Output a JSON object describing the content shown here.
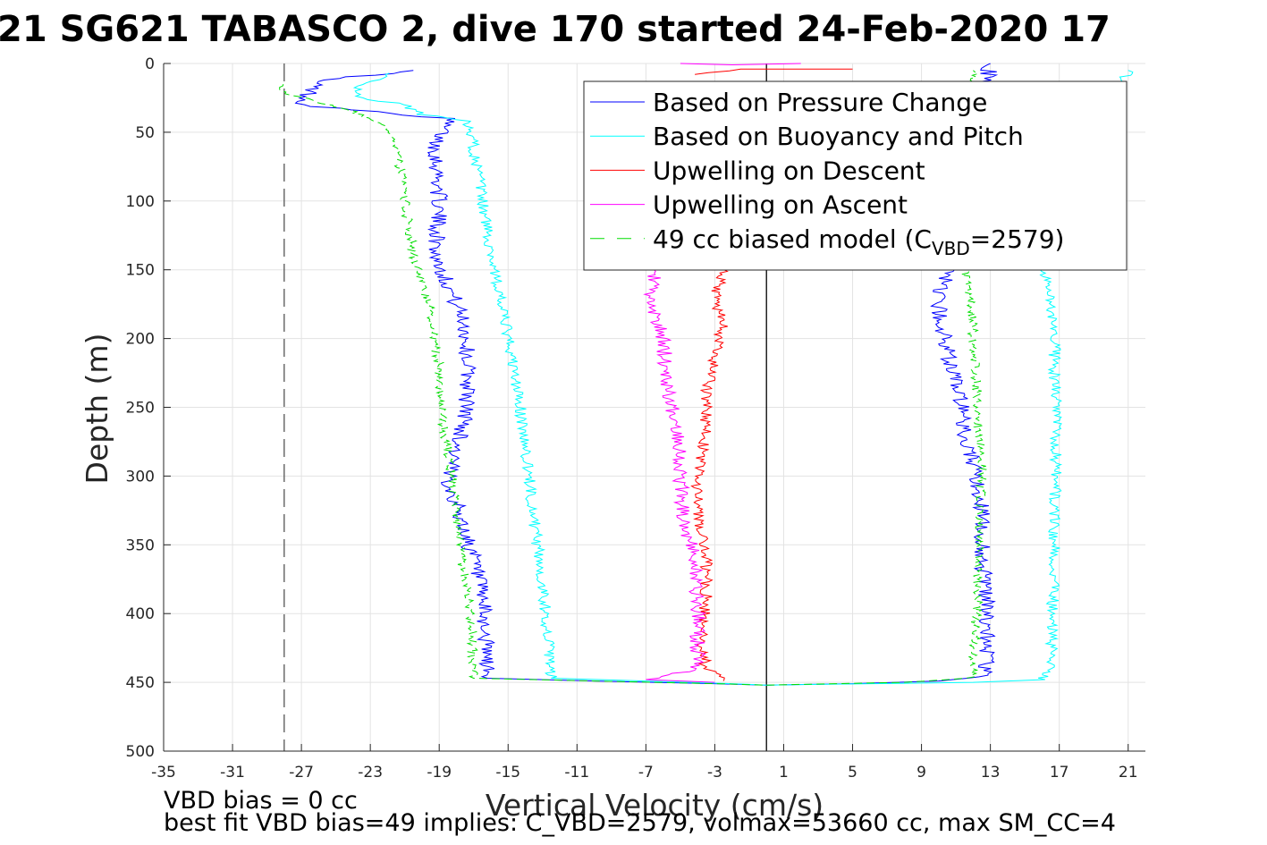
{
  "title": "21 SG621 TABASCO 2, dive 170 started 24-Feb-2020 17",
  "footnotes": {
    "line1": "VBD bias = 0 cc",
    "line2": "best fit VBD bias=49 implies: C_VBD=2579, volmax=53660 cc, max SM_CC=4"
  },
  "chart_data": {
    "type": "line",
    "xlabel": "Vertical Velocity (cm/s)",
    "ylabel": "Depth (m)",
    "xlim": [
      -35,
      22
    ],
    "ylim": [
      0,
      500
    ],
    "y_reversed": true,
    "xticks": [
      -35,
      -31,
      -27,
      -23,
      -19,
      -15,
      -11,
      -7,
      -3,
      1,
      5,
      9,
      13,
      17,
      21
    ],
    "yticks": [
      0,
      50,
      100,
      150,
      200,
      250,
      300,
      350,
      400,
      450,
      500
    ],
    "grid": true,
    "legend_position": "top-right",
    "reference_lines": [
      {
        "type": "vertical",
        "x": 0,
        "color": "#000000",
        "style": "solid"
      },
      {
        "type": "vertical",
        "x": -28,
        "color": "#555555",
        "style": "dashed"
      }
    ],
    "series": [
      {
        "name": "Based on Pressure Change",
        "color": "#0000ff",
        "style": "solid",
        "noise": 0.5,
        "segments": [
          [
            [
              -20,
              5
            ],
            [
              -26,
              12
            ],
            [
              -27,
              30
            ],
            [
              -23,
              35
            ],
            [
              -18.5,
              40
            ],
            [
              -19.2,
              60
            ],
            [
              -19,
              100
            ],
            [
              -19.2,
              140
            ],
            [
              -18.5,
              160
            ],
            [
              -17.5,
              190
            ],
            [
              -17.3,
              230
            ],
            [
              -17.5,
              260
            ],
            [
              -18,
              280
            ],
            [
              -18.5,
              300
            ],
            [
              -17.8,
              330
            ],
            [
              -17,
              360
            ],
            [
              -16.5,
              390
            ],
            [
              -16.3,
              420
            ],
            [
              -16.2,
              447
            ],
            [
              -10,
              449
            ],
            [
              -3,
              451
            ],
            [
              0,
              452
            ]
          ],
          [
            [
              0,
              452
            ],
            [
              5,
              451
            ],
            [
              10,
              449
            ],
            [
              12.5,
              446
            ],
            [
              12.8,
              440
            ],
            [
              12.8,
              420
            ],
            [
              12.8,
              390
            ],
            [
              12.5,
              360
            ],
            [
              12.5,
              330
            ],
            [
              12.2,
              300
            ],
            [
              11.5,
              270
            ],
            [
              11.2,
              240
            ],
            [
              10.5,
              210
            ],
            [
              10,
              180
            ],
            [
              10.2,
              160
            ],
            [
              11,
              150
            ],
            [
              13,
              0
            ]
          ]
        ]
      },
      {
        "name": "Based on Buoyancy and Pitch",
        "color": "#00ffff",
        "style": "solid",
        "noise": 0.35,
        "segments": [
          [
            [
              -22,
              7
            ],
            [
              -24,
              20
            ],
            [
              -23.5,
              25
            ],
            [
              -21,
              30
            ],
            [
              -20,
              37
            ],
            [
              -17.5,
              42
            ],
            [
              -17,
              60
            ],
            [
              -16.5,
              100
            ],
            [
              -15.8,
              150
            ],
            [
              -15,
              200
            ],
            [
              -14.3,
              250
            ],
            [
              -13.8,
              300
            ],
            [
              -13.3,
              350
            ],
            [
              -12.8,
              400
            ],
            [
              -12.5,
              447
            ],
            [
              -7,
              449
            ],
            [
              -2,
              451
            ],
            [
              0,
              452
            ]
          ],
          [
            [
              0,
              452
            ],
            [
              6,
              451
            ],
            [
              12,
              450
            ],
            [
              16,
              448
            ],
            [
              16.5,
              440
            ],
            [
              16.6,
              400
            ],
            [
              16.7,
              350
            ],
            [
              16.8,
              300
            ],
            [
              16.8,
              250
            ],
            [
              16.7,
              200
            ],
            [
              16.3,
              160
            ],
            [
              16,
              150
            ],
            [
              21,
              5
            ]
          ]
        ]
      },
      {
        "name": "Upwelling on Descent",
        "color": "#ff0000",
        "style": "solid",
        "noise": 0.35,
        "segments": [
          [
            [
              -2.5,
              150
            ],
            [
              -3,
              170
            ],
            [
              -2.5,
              190
            ],
            [
              -3,
              210
            ],
            [
              -3.5,
              240
            ],
            [
              -3.5,
              270
            ],
            [
              -4,
              300
            ],
            [
              -4,
              330
            ],
            [
              -3.5,
              360
            ],
            [
              -3.5,
              390
            ],
            [
              -3.8,
              420
            ],
            [
              -3.5,
              440
            ],
            [
              -2.5,
              449
            ]
          ],
          [
            [
              -4,
              8
            ],
            [
              -1.5,
              4
            ],
            [
              5,
              4
            ]
          ]
        ]
      },
      {
        "name": "Upwelling on Ascent",
        "color": "#ff00ff",
        "style": "solid",
        "noise": 0.45,
        "segments": [
          [
            [
              -6.5,
              150
            ],
            [
              -6.8,
              175
            ],
            [
              -6,
              200
            ],
            [
              -5.8,
              225
            ],
            [
              -5.5,
              250
            ],
            [
              -5,
              275
            ],
            [
              -5,
              300
            ],
            [
              -4.8,
              330
            ],
            [
              -4.2,
              360
            ],
            [
              -4,
              390
            ],
            [
              -4,
              420
            ],
            [
              -4,
              440
            ],
            [
              -7,
              448
            ],
            [
              -3,
              450
            ]
          ],
          [
            [
              -5,
              0
            ],
            [
              -2,
              1
            ],
            [
              2,
              0
            ]
          ]
        ]
      },
      {
        "name": "49 cc biased model (C_VBD=2579)",
        "color": "#00dd00",
        "style": "dashed",
        "noise": 0.3,
        "segments": [
          [
            [
              -28,
              15
            ],
            [
              -28,
              22
            ],
            [
              -26,
              28
            ],
            [
              -24,
              35
            ],
            [
              -22.5,
              42
            ],
            [
              -21.5,
              60
            ],
            [
              -21,
              100
            ],
            [
              -20.5,
              140
            ],
            [
              -19.5,
              180
            ],
            [
              -19,
              220
            ],
            [
              -18.8,
              260
            ],
            [
              -18.3,
              300
            ],
            [
              -17.8,
              350
            ],
            [
              -17.2,
              400
            ],
            [
              -17,
              447
            ],
            [
              -10,
              449
            ],
            [
              -3,
              451
            ],
            [
              0,
              452
            ]
          ],
          [
            [
              0,
              452
            ],
            [
              8,
              450
            ],
            [
              11.8,
              447
            ],
            [
              12,
              440
            ],
            [
              12.2,
              400
            ],
            [
              12.3,
              350
            ],
            [
              12.5,
              300
            ],
            [
              12.3,
              250
            ],
            [
              12,
              200
            ],
            [
              11.8,
              170
            ],
            [
              11.5,
              150
            ],
            [
              12,
              5
            ]
          ]
        ]
      }
    ]
  }
}
